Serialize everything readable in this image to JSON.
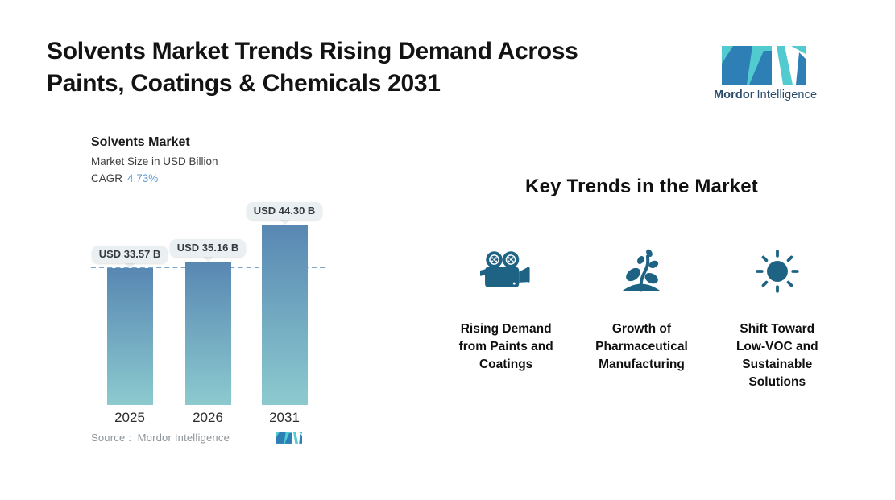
{
  "header": {
    "title_line1": "Solvents Market Trends Rising Demand Across",
    "title_line2": "Paints, Coatings & Chemicals 2031",
    "logo": {
      "brand_bold": "Mordor",
      "brand_regular": "Intelligence"
    }
  },
  "chart_data": {
    "type": "bar",
    "title": "Solvents Market",
    "subtitle": "Market Size in USD Billion",
    "cagr_label": "CAGR",
    "cagr_value": "4.73%",
    "categories": [
      "2025",
      "2026",
      "2031"
    ],
    "values": [
      33.57,
      35.16,
      44.3
    ],
    "value_labels": [
      "USD 33.57 B",
      "USD 35.16 B",
      "USD 44.30 B"
    ],
    "ylabel": "Market Size in USD Billion",
    "xlabel": "",
    "ylim": [
      0,
      50
    ],
    "grid": false,
    "baseline_reference_value": 33.57,
    "source_label": "Source :  Mordor Intelligence"
  },
  "key_trends": {
    "heading": "Key Trends in the Market",
    "items": [
      {
        "icon": "video-camera-icon",
        "label": "Rising Demand\nfrom Paints and\nCoatings"
      },
      {
        "icon": "plant-growth-icon",
        "label": "Growth of\nPharmaceutical\nManufacturing"
      },
      {
        "icon": "sun-icon",
        "label": "Shift Toward\nLow-VOC and\nSustainable\nSolutions"
      }
    ]
  },
  "theme": {
    "accent": "#1e6384",
    "logo_blue": "#2e7fb5",
    "logo_teal": "#52cbd0",
    "logo_text": "#2b4d6b",
    "cagr_color": "#5d9bd3",
    "bar_top": "#5887b2",
    "bar_bottom": "#8ccacf",
    "dash_color": "#7ba6c9",
    "chip_bg": "#eaeff2",
    "source_color": "#8d959b"
  }
}
